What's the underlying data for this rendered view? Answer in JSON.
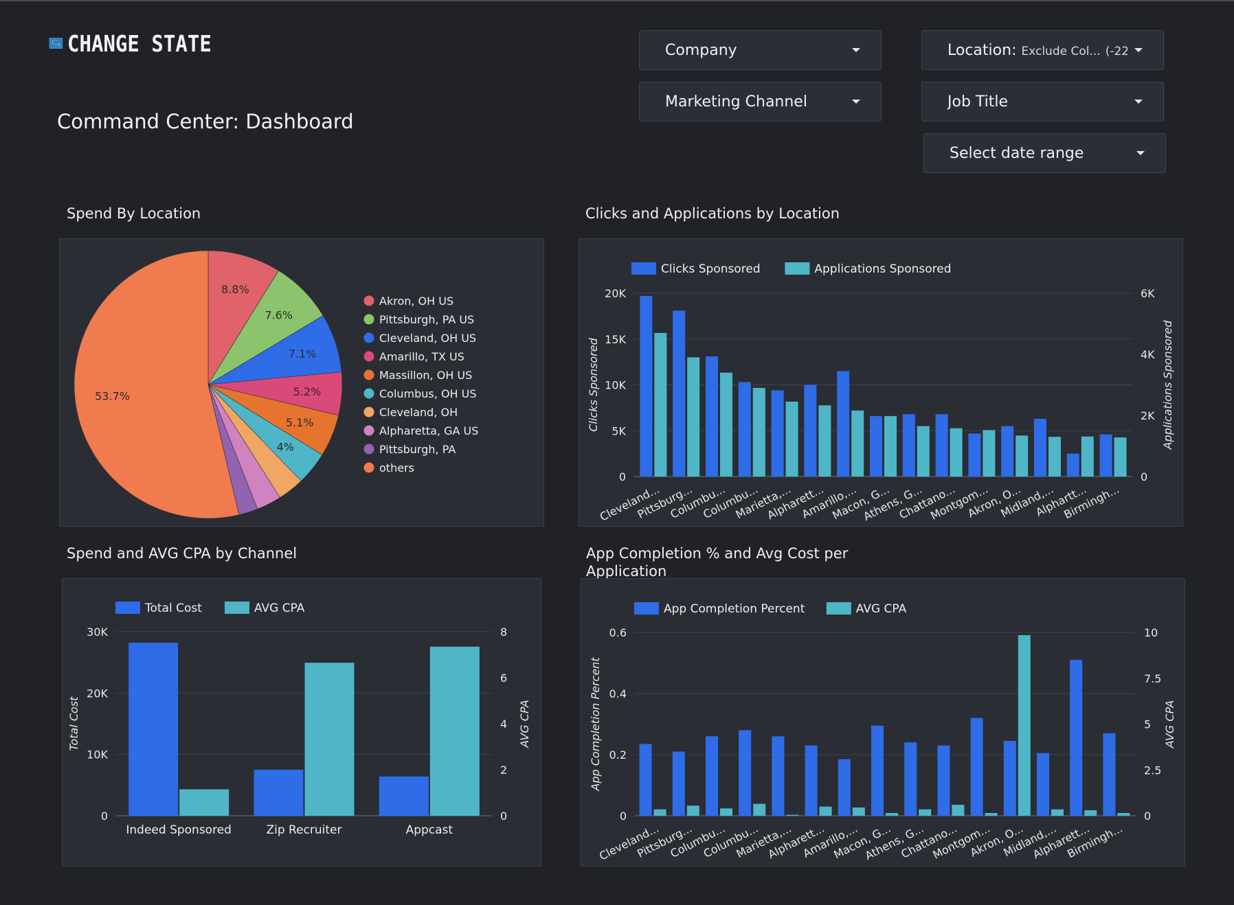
{
  "header": {
    "logo_text": "CHANGE STATE",
    "page_title": "Command Center: Dashboard"
  },
  "filters": {
    "company": "Company",
    "location_label": "Location",
    "location_value": "Exclude Col...",
    "location_count": "(-22)",
    "marketing_channel": "Marketing Channel",
    "job_title": "Job Title",
    "date_range": "Select date range"
  },
  "colors": {
    "blue": "#2f6ce8",
    "teal": "#4fb6c8",
    "background": "#202228",
    "card": "#2a2d34"
  },
  "cards": {
    "spend_by_location": "Spend By Location",
    "clicks_apps": "Clicks and Applications by Location",
    "spend_cpa_channel": "Spend and AVG CPA by Channel",
    "app_completion_title_line1": "App Completion % and Avg Cost per",
    "app_completion_title_line2": "Application"
  },
  "chart_data": [
    {
      "id": "pie",
      "type": "pie",
      "slices": [
        {
          "label": "Akron, OH US",
          "value": 8.8,
          "display": "8.8%",
          "color": "#e0626a"
        },
        {
          "label": "Pittsburgh, PA US",
          "value": 7.6,
          "display": "7.6%",
          "color": "#8cc46d"
        },
        {
          "label": "Cleveland, OH US",
          "value": 7.1,
          "display": "7.1%",
          "color": "#2f6ce8"
        },
        {
          "label": "Amarillo, TX US",
          "value": 5.2,
          "display": "5.2%",
          "color": "#d9497a"
        },
        {
          "label": "Massillon, OH US",
          "value": 5.1,
          "display": "5.1%",
          "color": "#e6742f"
        },
        {
          "label": "Columbus, OH US",
          "value": 4.0,
          "display": "4%",
          "color": "#4fb6c8"
        },
        {
          "label": "Cleveland, OH",
          "value": 3.2,
          "display": "",
          "color": "#f0a766"
        },
        {
          "label": "Alpharetta, GA US",
          "value": 3.0,
          "display": "",
          "color": "#d183c1"
        },
        {
          "label": "Pittsburgh, PA",
          "value": 2.3,
          "display": "",
          "color": "#9363b1"
        },
        {
          "label": "others",
          "value": 53.7,
          "display": "53.7%",
          "color": "#ef7b4f"
        }
      ]
    },
    {
      "id": "clicks",
      "type": "bar",
      "categories": [
        "Cleveland...",
        "Pittsburg...",
        "Columbu...",
        "Columbu...",
        "Marietta,...",
        "Alpharett...",
        "Amarillo,...",
        "Macon, G...",
        "Athens, G...",
        "Chattano...",
        "Montgom...",
        "Akron, O...",
        "Midland,...",
        "Alphartt...",
        "Birmingh..."
      ],
      "series": [
        {
          "name": "Clicks Sponsored",
          "axis": "left",
          "values": [
            19700,
            18100,
            13100,
            10300,
            9400,
            10000,
            11500,
            6600,
            6800,
            6800,
            4700,
            5500,
            6300,
            2500,
            4600
          ]
        },
        {
          "name": "Applications Sponsored",
          "axis": "right",
          "values": [
            4700,
            3900,
            3400,
            2900,
            2450,
            2330,
            2160,
            1980,
            1650,
            1580,
            1520,
            1340,
            1300,
            1310,
            1280
          ]
        }
      ],
      "y_left": {
        "label": "Clicks Sponsored",
        "min": 0,
        "max": 20000,
        "ticks": [
          "0",
          "5K",
          "10K",
          "15K",
          "20K"
        ]
      },
      "y_right": {
        "label": "Applications Sponsored",
        "min": 0,
        "max": 6000,
        "ticks": [
          "0",
          "2K",
          "4K",
          "6K"
        ]
      },
      "legend": "top-left",
      "grid": true
    },
    {
      "id": "channel",
      "type": "bar",
      "categories": [
        "Indeed Sponsored",
        "Zip Recruiter",
        "Appcast"
      ],
      "series": [
        {
          "name": "Total Cost",
          "axis": "left",
          "values": [
            28200,
            7500,
            6400
          ]
        },
        {
          "name": "AVG CPA",
          "axis": "right",
          "values": [
            1.15,
            6.65,
            7.35
          ]
        }
      ],
      "y_left": {
        "label": "Total Cost",
        "min": 0,
        "max": 30000,
        "ticks": [
          "0",
          "10K",
          "20K",
          "30K"
        ]
      },
      "y_right": {
        "label": "AVG CPA",
        "min": 0,
        "max": 8,
        "ticks": [
          "0",
          "2",
          "4",
          "6",
          "8"
        ]
      },
      "legend": "top-left",
      "grid": true
    },
    {
      "id": "completion",
      "type": "bar",
      "categories": [
        "Cleveland...",
        "Pittsburg...",
        "Columbu...",
        "Columbu...",
        "Marietta,...",
        "Alpharett...",
        "Amarillo,...",
        "Macon, G...",
        "Athens, G...",
        "Chattano...",
        "Montgom...",
        "Akron, O...",
        "Midland,...",
        "Alpharett...",
        "Birmingh..."
      ],
      "series": [
        {
          "name": "App Completion Percent",
          "axis": "left",
          "values": [
            0.235,
            0.21,
            0.26,
            0.28,
            0.26,
            0.23,
            0.185,
            0.295,
            0.24,
            0.23,
            0.32,
            0.245,
            0.205,
            0.51,
            0.27
          ]
        },
        {
          "name": "AVG CPA",
          "axis": "right",
          "values": [
            0.35,
            0.55,
            0.4,
            0.65,
            0.05,
            0.5,
            0.45,
            0.15,
            0.35,
            0.6,
            0.15,
            9.85,
            0.35,
            0.3,
            0.15
          ]
        }
      ],
      "y_left": {
        "label": "App Completion Percent",
        "min": 0,
        "max": 0.6,
        "ticks": [
          "0",
          "0.2",
          "0.4",
          "0.6"
        ]
      },
      "y_right": {
        "label": "AVG CPA",
        "min": 0,
        "max": 10,
        "ticks": [
          "0",
          "2.5",
          "5",
          "7.5",
          "10"
        ]
      },
      "legend": "top-left",
      "grid": true
    }
  ]
}
